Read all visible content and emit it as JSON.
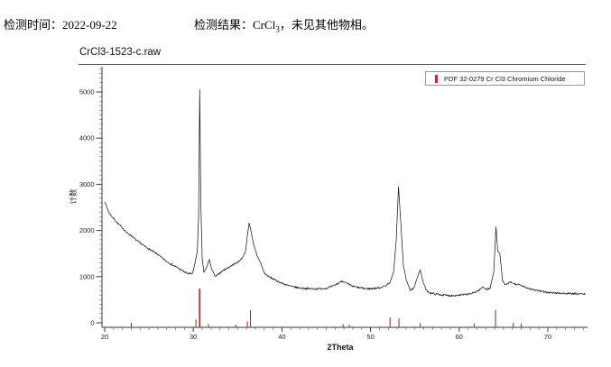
{
  "header": {
    "time_label": "检测时间：",
    "time_value": "2022-09-22",
    "result_label": "检测结果：",
    "formula_base": "CrCl",
    "formula_sub": "3",
    "result_text": "，未见其他物相。"
  },
  "chart": {
    "title": "CrCl3-1523-c.raw",
    "legend": {
      "label": "PDF 32-0279 Cr Cl3 Chromium Chloride",
      "marker_color": "#cc2430"
    },
    "x_axis": {
      "label": "2Theta",
      "min": 20,
      "max": 74.5,
      "major_ticks": [
        20,
        30,
        40,
        50,
        60,
        70
      ],
      "minor_step": 1
    },
    "y_axis": {
      "label": "计数",
      "min": 0,
      "max": 5500,
      "major_ticks": [
        0,
        1000,
        2000,
        3000,
        4000,
        5000
      ],
      "minor_step": 100
    },
    "colors": {
      "trace": "#1a1a1a",
      "reference": "#a8323c",
      "axis": "#3a3a3a",
      "tick_label": "#222222"
    }
  },
  "chart_data": {
    "type": "line",
    "title": "CrCl3-1523-c.raw",
    "xlabel": "2Theta",
    "ylabel": "计数",
    "xlim": [
      20,
      74.5
    ],
    "ylim": [
      0,
      5500
    ],
    "grid": false,
    "legend_position": "top-right",
    "series": [
      {
        "name": "CrCl3-1523-c.raw",
        "points": [
          [
            20.0,
            2620
          ],
          [
            20.5,
            2380
          ],
          [
            21.0,
            2260
          ],
          [
            21.5,
            2150
          ],
          [
            22.0,
            2060
          ],
          [
            22.5,
            1950
          ],
          [
            23.0,
            1890
          ],
          [
            23.5,
            1800
          ],
          [
            24.0,
            1730
          ],
          [
            24.5,
            1660
          ],
          [
            25.0,
            1600
          ],
          [
            25.5,
            1540
          ],
          [
            26.0,
            1480
          ],
          [
            26.5,
            1400
          ],
          [
            27.0,
            1330
          ],
          [
            27.5,
            1270
          ],
          [
            28.0,
            1220
          ],
          [
            28.5,
            1160
          ],
          [
            29.0,
            1100
          ],
          [
            29.5,
            1060
          ],
          [
            29.9,
            1060
          ],
          [
            30.2,
            1300
          ],
          [
            30.45,
            1550
          ],
          [
            30.6,
            2300
          ],
          [
            30.72,
            5050
          ],
          [
            30.85,
            2600
          ],
          [
            31.0,
            1400
          ],
          [
            31.2,
            1090
          ],
          [
            31.5,
            1200
          ],
          [
            31.8,
            1370
          ],
          [
            32.1,
            1150
          ],
          [
            32.5,
            1000
          ],
          [
            33.0,
            1080
          ],
          [
            33.5,
            1150
          ],
          [
            34.0,
            1200
          ],
          [
            34.5,
            1260
          ],
          [
            35.0,
            1310
          ],
          [
            35.5,
            1400
          ],
          [
            35.9,
            1550
          ],
          [
            36.1,
            1900
          ],
          [
            36.3,
            2160
          ],
          [
            36.5,
            2000
          ],
          [
            36.8,
            1700
          ],
          [
            37.2,
            1450
          ],
          [
            37.6,
            1300
          ],
          [
            38.0,
            1080
          ],
          [
            38.5,
            1000
          ],
          [
            39.0,
            950
          ],
          [
            39.5,
            900
          ],
          [
            40.0,
            860
          ],
          [
            40.5,
            820
          ],
          [
            41.0,
            790
          ],
          [
            41.5,
            770
          ],
          [
            42.0,
            755
          ],
          [
            43.0,
            740
          ],
          [
            44.0,
            735
          ],
          [
            45.0,
            750
          ],
          [
            45.7,
            790
          ],
          [
            46.3,
            850
          ],
          [
            46.8,
            910
          ],
          [
            47.3,
            850
          ],
          [
            48.0,
            790
          ],
          [
            48.7,
            760
          ],
          [
            49.5,
            740
          ],
          [
            50.2,
            740
          ],
          [
            51.0,
            760
          ],
          [
            51.7,
            800
          ],
          [
            52.2,
            880
          ],
          [
            52.6,
            1100
          ],
          [
            52.9,
            1800
          ],
          [
            53.15,
            2950
          ],
          [
            53.4,
            2200
          ],
          [
            53.7,
            1250
          ],
          [
            54.0,
            950
          ],
          [
            54.5,
            700
          ],
          [
            54.9,
            750
          ],
          [
            55.3,
            1000
          ],
          [
            55.6,
            1150
          ],
          [
            55.9,
            900
          ],
          [
            56.3,
            700
          ],
          [
            56.8,
            640
          ],
          [
            57.5,
            620
          ],
          [
            58.2,
            600
          ],
          [
            59.0,
            590
          ],
          [
            60.0,
            600
          ],
          [
            60.8,
            610
          ],
          [
            61.5,
            640
          ],
          [
            62.2,
            700
          ],
          [
            62.7,
            780
          ],
          [
            63.1,
            720
          ],
          [
            63.5,
            760
          ],
          [
            63.9,
            1100
          ],
          [
            64.15,
            2080
          ],
          [
            64.35,
            1550
          ],
          [
            64.6,
            1480
          ],
          [
            64.9,
            900
          ],
          [
            65.2,
            820
          ],
          [
            65.8,
            880
          ],
          [
            66.3,
            840
          ],
          [
            66.8,
            820
          ],
          [
            67.3,
            780
          ],
          [
            68.0,
            740
          ],
          [
            68.8,
            700
          ],
          [
            69.5,
            670
          ],
          [
            70.5,
            650
          ],
          [
            71.5,
            640
          ],
          [
            72.5,
            630
          ],
          [
            73.5,
            625
          ],
          [
            74.2,
            620
          ]
        ]
      }
    ],
    "reference_peaks": {
      "name": "PDF 32-0279 Cr Cl3 Chromium Chloride",
      "peaks": [
        [
          23.0,
          100
        ],
        [
          30.3,
          170
        ],
        [
          30.72,
          840
        ],
        [
          31.7,
          70
        ],
        [
          34.8,
          60
        ],
        [
          36.1,
          130
        ],
        [
          36.45,
          370
        ],
        [
          46.9,
          70
        ],
        [
          47.6,
          60
        ],
        [
          52.2,
          215
        ],
        [
          53.2,
          190
        ],
        [
          55.6,
          90
        ],
        [
          61.7,
          80
        ],
        [
          64.1,
          380
        ],
        [
          66.1,
          100
        ],
        [
          67.0,
          90
        ]
      ]
    }
  }
}
